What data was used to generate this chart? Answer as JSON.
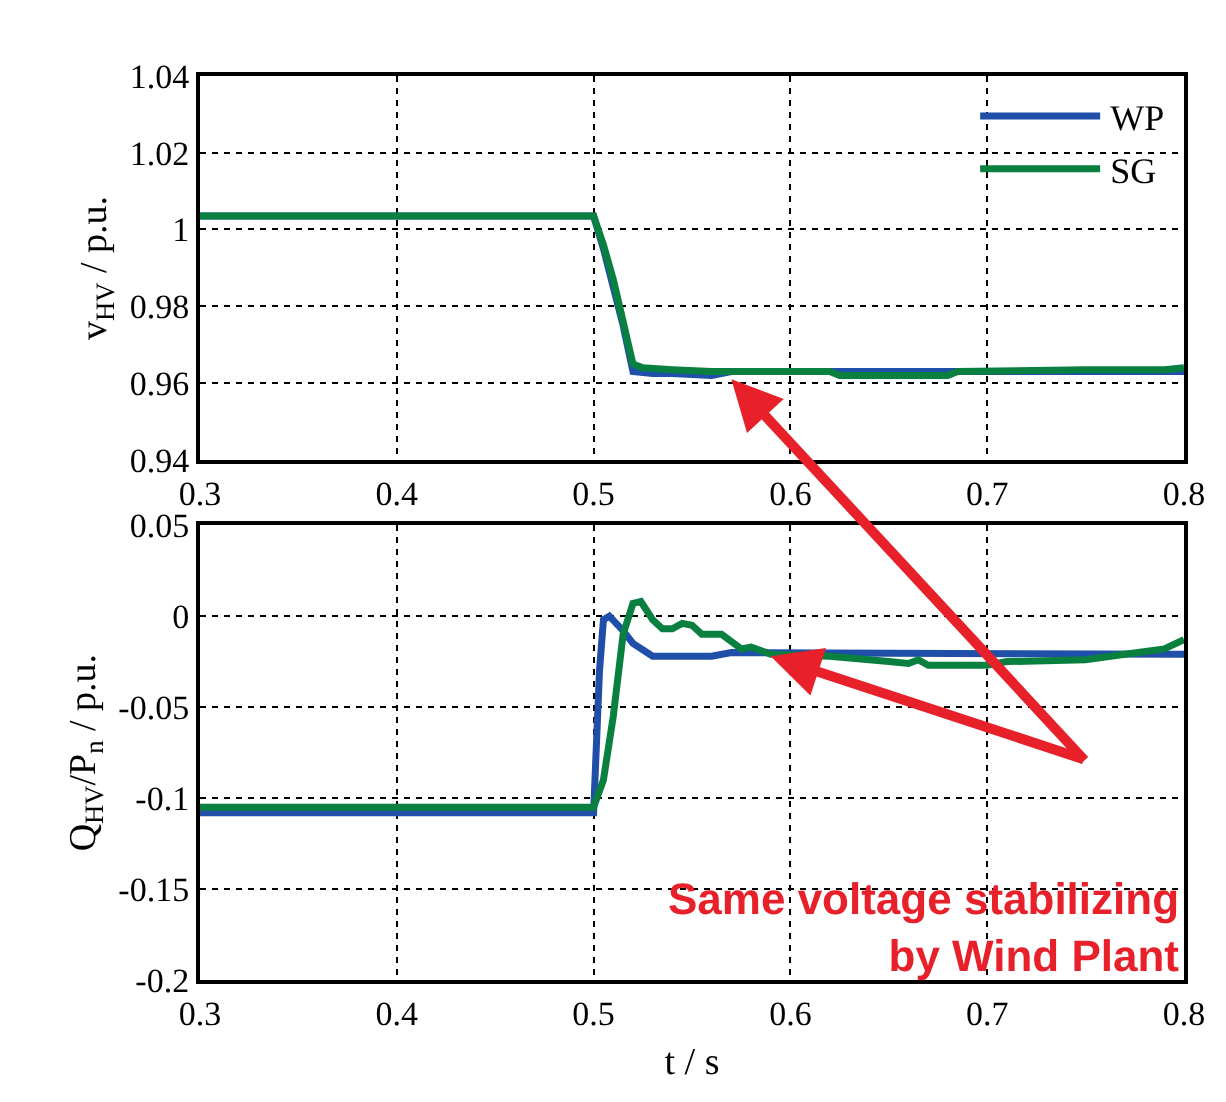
{
  "chart_data": [
    {
      "type": "line",
      "ylabel": "v$_{HV}$ / p.u.",
      "xlim": [
        0.3,
        0.8
      ],
      "xticks": [
        0.3,
        0.4,
        0.5,
        0.6,
        0.7,
        0.8
      ],
      "ylim": [
        0.94,
        1.04
      ],
      "yticks": [
        0.94,
        0.96,
        0.98,
        1,
        1.02,
        1.04
      ],
      "grid": true,
      "legend": "top right",
      "line_style": "solid",
      "series": [
        {
          "name": "WP",
          "color": "#1f4fa8",
          "x": [
            0.3,
            0.5,
            0.505,
            0.51,
            0.515,
            0.52,
            0.53,
            0.54,
            0.56,
            0.57,
            0.8
          ],
          "values": [
            1.0035,
            1.0035,
            0.995,
            0.985,
            0.975,
            0.963,
            0.9625,
            0.9625,
            0.962,
            0.963,
            0.963
          ]
        },
        {
          "name": "SG",
          "color": "#0a8040",
          "x": [
            0.3,
            0.5,
            0.505,
            0.51,
            0.515,
            0.52,
            0.525,
            0.54,
            0.56,
            0.62,
            0.625,
            0.68,
            0.685,
            0.75,
            0.79,
            0.8
          ],
          "values": [
            1.0035,
            1.0035,
            0.996,
            0.987,
            0.976,
            0.965,
            0.964,
            0.9635,
            0.963,
            0.963,
            0.962,
            0.962,
            0.963,
            0.9635,
            0.9635,
            0.964
          ]
        }
      ]
    },
    {
      "type": "line",
      "xlabel": "t / s",
      "ylabel": "Q$_{HV}$/P$_{n}$ / p.u.",
      "xlim": [
        0.3,
        0.8
      ],
      "xticks": [
        0.3,
        0.4,
        0.5,
        0.6,
        0.7,
        0.8
      ],
      "ylim": [
        -0.2,
        0.05
      ],
      "yticks": [
        -0.2,
        -0.15,
        -0.1,
        -0.05,
        0,
        0.05
      ],
      "grid": true,
      "line_style": "solid",
      "annotations": [
        "Same voltage stabilizing\nby Wind Plant"
      ],
      "series": [
        {
          "color": "#1f4fa8",
          "x": [
            0.3,
            0.5,
            0.503,
            0.505,
            0.508,
            0.515,
            0.52,
            0.53,
            0.56,
            0.57,
            0.8
          ],
          "values": [
            -0.108,
            -0.108,
            -0.03,
            -0.002,
            0,
            -0.008,
            -0.015,
            -0.022,
            -0.022,
            -0.02,
            -0.021
          ]
        },
        {
          "color": "#0a8040",
          "x": [
            0.3,
            0.5,
            0.505,
            0.51,
            0.515,
            0.52,
            0.524,
            0.53,
            0.535,
            0.54,
            0.545,
            0.55,
            0.555,
            0.565,
            0.575,
            0.58,
            0.59,
            0.62,
            0.65,
            0.66,
            0.665,
            0.67,
            0.7,
            0.71,
            0.75,
            0.77,
            0.79,
            0.8
          ],
          "values": [
            -0.105,
            -0.105,
            -0.09,
            -0.055,
            -0.01,
            0.007,
            0.008,
            -0.002,
            -0.007,
            -0.007,
            -0.004,
            -0.005,
            -0.01,
            -0.01,
            -0.018,
            -0.017,
            -0.021,
            -0.022,
            -0.025,
            -0.026,
            -0.024,
            -0.027,
            -0.027,
            -0.025,
            -0.024,
            -0.021,
            -0.018,
            -0.013
          ]
        }
      ]
    }
  ]
}
